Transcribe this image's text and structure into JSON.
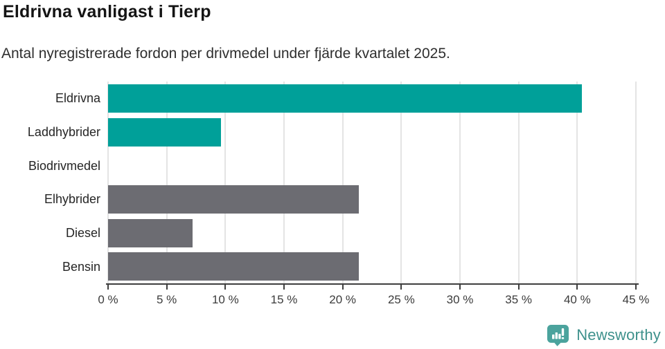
{
  "header": {
    "title": "Eldrivna vanligast i Tierp",
    "subtitle": "Antal nyregistrerade fordon per drivmedel under fjärde kvartalet 2025."
  },
  "chart_data": {
    "type": "bar",
    "orientation": "horizontal",
    "title": "Eldrivna vanligast i Tierp",
    "subtitle": "Antal nyregistrerade fordon per drivmedel under fjärde kvartalet 2025.",
    "categories": [
      "Eldrivna",
      "Laddhybrider",
      "Biodrivmedel",
      "Elhybrider",
      "Diesel",
      "Bensin"
    ],
    "values": [
      40.4,
      9.6,
      0,
      21.4,
      7.2,
      21.4
    ],
    "bar_colors": [
      "#00a099",
      "#00a099",
      "#6c6c72",
      "#6c6c72",
      "#6c6c72",
      "#6c6c72"
    ],
    "xlabel": "",
    "ylabel": "",
    "xlim": [
      0,
      45
    ],
    "x_ticks": [
      0,
      5,
      10,
      15,
      20,
      25,
      30,
      35,
      40,
      45
    ],
    "x_tick_suffix": " %",
    "grid": true,
    "legend": "none",
    "colors": {
      "accent": "#00a099",
      "muted_bar": "#6c6c72",
      "gridline": "#e4e4e4",
      "axis": "#3e3e3e",
      "brand_teal": "#3e918c",
      "icon_teal": "#4ba39d"
    }
  },
  "footer": {
    "brand": "Newsworthy"
  }
}
